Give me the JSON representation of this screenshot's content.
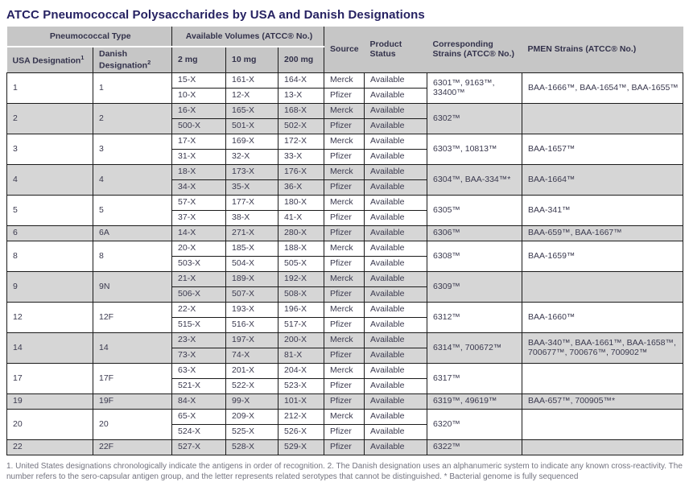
{
  "title": "ATCC Pneumococcal Polysaccharides by USA and Danish Designations",
  "colors": {
    "title_text": "#262262",
    "header_background": "#c6c6c6",
    "row_alternate": "#d6d6d6",
    "body_text": "#3a394e",
    "cell_border": "#1b1b1b",
    "footnote_text": "#73737f"
  },
  "header": {
    "pneumococcal_type": "Pneumococcal Type",
    "usa": "USA Designation",
    "usa_sup": "1",
    "danish": "Danish Designation",
    "danish_sup": "2",
    "volumes": "Available Volumes (ATCC® No.)",
    "v2": "2 mg",
    "v10": "10 mg",
    "v200": "200 mg",
    "source": "Source",
    "status": "Product Status",
    "strains": "Corresponding Strains (ATCC® No.)",
    "pmen": "PMEN Strains (ATCC® No.)"
  },
  "groups": [
    {
      "usa": "1",
      "danish": "1",
      "rows": [
        [
          "15-X",
          "161-X",
          "164-X",
          "Merck",
          "Available"
        ],
        [
          "10-X",
          "12-X",
          "13-X",
          "Pfizer",
          "Available"
        ]
      ],
      "strains": "6301™, 9163™, 33400™",
      "pmen": "BAA-1666™, BAA-1654™, BAA-1655™"
    },
    {
      "usa": "2",
      "danish": "2",
      "rows": [
        [
          "16-X",
          "165-X",
          "168-X",
          "Merck",
          "Available"
        ],
        [
          "500-X",
          "501-X",
          "502-X",
          "Pfizer",
          "Available"
        ]
      ],
      "strains": "6302™",
      "pmen": ""
    },
    {
      "usa": "3",
      "danish": "3",
      "rows": [
        [
          "17-X",
          "169-X",
          "172-X",
          "Merck",
          "Available"
        ],
        [
          "31-X",
          "32-X",
          "33-X",
          "Pfizer",
          "Available"
        ]
      ],
      "strains": "6303™, 10813™",
      "pmen": "BAA-1657™"
    },
    {
      "usa": "4",
      "danish": "4",
      "rows": [
        [
          "18-X",
          "173-X",
          "176-X",
          "Merck",
          "Available"
        ],
        [
          "34-X",
          "35-X",
          "36-X",
          "Pfizer",
          "Available"
        ]
      ],
      "strains": "6304™, BAA-334™*",
      "pmen": "BAA-1664™"
    },
    {
      "usa": "5",
      "danish": "5",
      "rows": [
        [
          "57-X",
          "177-X",
          "180-X",
          "Merck",
          "Available"
        ],
        [
          "37-X",
          "38-X",
          "41-X",
          "Pfizer",
          "Available"
        ]
      ],
      "strains": "6305™",
      "pmen": "BAA-341™"
    },
    {
      "usa": "6",
      "danish": "6A",
      "rows": [
        [
          "14-X",
          "271-X",
          "280-X",
          "Pfizer",
          "Available"
        ]
      ],
      "strains": "6306™",
      "pmen": "BAA-659™, BAA-1667™"
    },
    {
      "usa": "8",
      "danish": "8",
      "rows": [
        [
          "20-X",
          "185-X",
          "188-X",
          "Merck",
          "Available"
        ],
        [
          "503-X",
          "504-X",
          "505-X",
          "Pfizer",
          "Available"
        ]
      ],
      "strains": "6308™",
      "pmen": "BAA-1659™"
    },
    {
      "usa": "9",
      "danish": "9N",
      "rows": [
        [
          "21-X",
          "189-X",
          "192-X",
          "Merck",
          "Available"
        ],
        [
          "506-X",
          "507-X",
          "508-X",
          "Pfizer",
          "Available"
        ]
      ],
      "strains": "6309™",
      "pmen": ""
    },
    {
      "usa": "12",
      "danish": "12F",
      "rows": [
        [
          "22-X",
          "193-X",
          "196-X",
          "Merck",
          "Available"
        ],
        [
          "515-X",
          "516-X",
          "517-X",
          "Pfizer",
          "Available"
        ]
      ],
      "strains": "6312™",
      "pmen": "BAA-1660™"
    },
    {
      "usa": "14",
      "danish": "14",
      "rows": [
        [
          "23-X",
          "197-X",
          "200-X",
          "Merck",
          "Available"
        ],
        [
          "73-X",
          "74-X",
          "81-X",
          "Pfizer",
          "Available"
        ]
      ],
      "strains": "6314™, 700672™",
      "pmen": "BAA-340™, BAA-1661™, BAA-1658™, 700677™, 700676™, 700902™"
    },
    {
      "usa": "17",
      "danish": "17F",
      "rows": [
        [
          "63-X",
          "201-X",
          "204-X",
          "Merck",
          "Available"
        ],
        [
          "521-X",
          "522-X",
          "523-X",
          "Pfizer",
          "Available"
        ]
      ],
      "strains": "6317™",
      "pmen": ""
    },
    {
      "usa": "19",
      "danish": "19F",
      "rows": [
        [
          "84-X",
          "99-X",
          "101-X",
          "Pfizer",
          "Available"
        ]
      ],
      "strains": "6319™, 49619™",
      "pmen": "BAA-657™, 700905™*"
    },
    {
      "usa": "20",
      "danish": "20",
      "rows": [
        [
          "65-X",
          "209-X",
          "212-X",
          "Merck",
          "Available"
        ],
        [
          "524-X",
          "525-X",
          "526-X",
          "Pfizer",
          "Available"
        ]
      ],
      "strains": "6320™",
      "pmen": ""
    },
    {
      "usa": "22",
      "danish": "22F",
      "rows": [
        [
          "527-X",
          "528-X",
          "529-X",
          "Pfizer",
          "Available"
        ]
      ],
      "strains": "6322™",
      "pmen": ""
    }
  ],
  "footnote": "1. United States designations chronologically indicate the antigens in order of recognition. 2. The Danish designation uses an alphanumeric system to indicate any known cross-reactivity. The number refers to the sero-capsular antigen group, and the letter represents related serotypes that cannot be distinguished. * Bacterial genome is fully sequenced"
}
